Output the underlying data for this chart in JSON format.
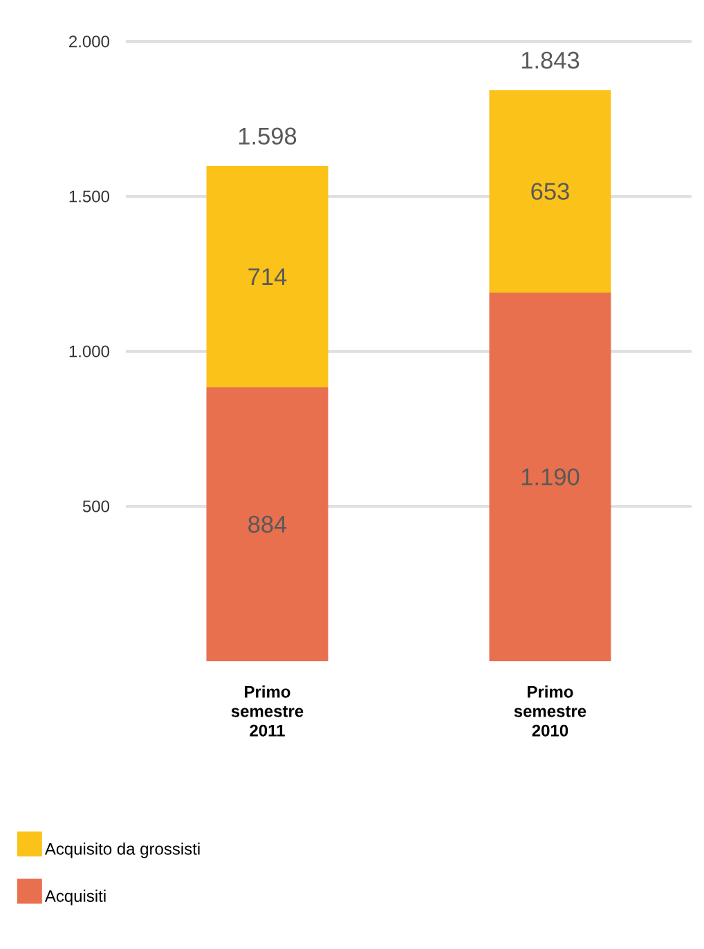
{
  "chart_data": {
    "type": "bar",
    "stacked": true,
    "categories": [
      "**Primo semestre 2011**",
      "**Primo semestre 2010**"
    ],
    "series": [
      {
        "name": "Acquisiti",
        "color": "#e8704f",
        "values": [
          884,
          1190
        ],
        "value_labels": [
          "884",
          "1.190"
        ]
      },
      {
        "name": "Acquisito da grossisti",
        "color": "#fbc21a",
        "values": [
          714,
          653
        ],
        "value_labels": [
          "714",
          "653"
        ]
      }
    ],
    "totals": [
      "1.598",
      "1.843"
    ],
    "ylim": [
      0,
      2000
    ],
    "yticks": [
      500,
      {
        "value": 1000,
        "label": "1.000"
      },
      {
        "value": 1500,
        "label": "1.500"
      },
      {
        "value": 2000,
        "label": "2.000"
      }
    ],
    "grid": "y",
    "legend": "bottom left"
  }
}
